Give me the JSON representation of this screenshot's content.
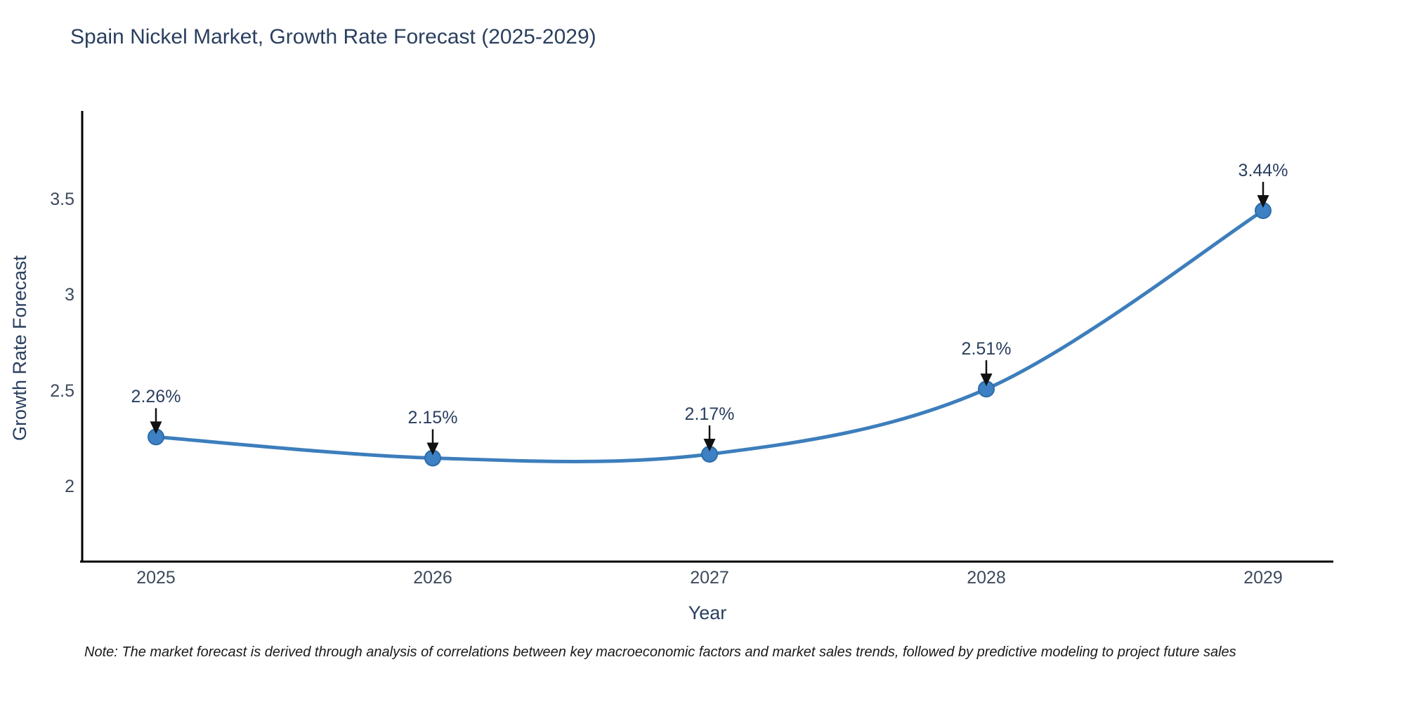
{
  "title": "Spain Nickel Market, Growth Rate Forecast (2025-2029)",
  "note": "Note: The market forecast is derived through analysis of correlations between key macroeconomic factors and market sales trends, followed by predictive modeling to project future sales",
  "chart_data": {
    "type": "line",
    "title": "Spain Nickel Market, Growth Rate Forecast (2025-2029)",
    "xlabel": "Year",
    "ylabel": "Growth Rate Forecast",
    "categories": [
      "2025",
      "2026",
      "2027",
      "2028",
      "2029"
    ],
    "series": [
      {
        "name": "Growth Rate Forecast",
        "values": [
          2.26,
          2.15,
          2.17,
          2.51,
          3.44
        ]
      }
    ],
    "point_labels": [
      "2.26%",
      "2.15%",
      "2.17%",
      "2.51%",
      "3.44%"
    ],
    "yticks": [
      2,
      2.5,
      3,
      3.5
    ],
    "ylim": [
      1.61,
      3.96
    ],
    "grid": false,
    "legend": "none",
    "line_shape": "spline",
    "line_color": "#3d7ebc",
    "marker_color": "#3d80c4",
    "marker_edge_color": "#2d6ca8",
    "axis_color": "#000000",
    "arrow_color": "#111111",
    "text_color": "#2a3f5f"
  }
}
